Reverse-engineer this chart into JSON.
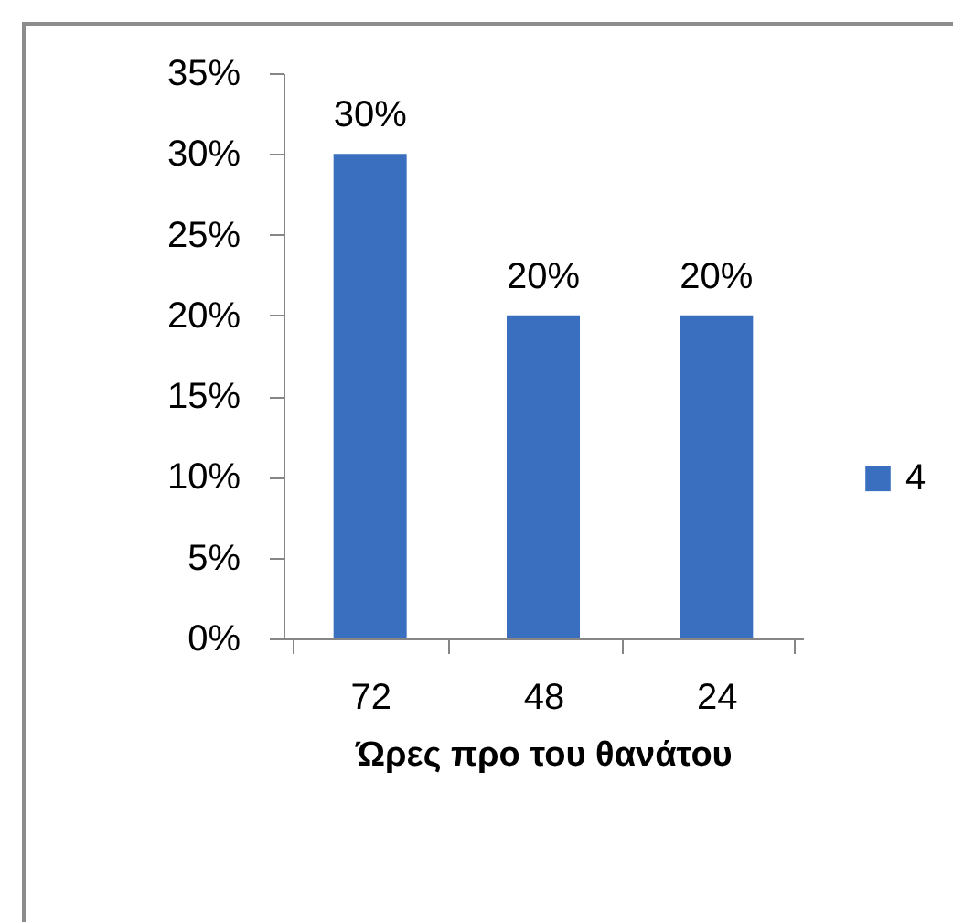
{
  "chart_data": {
    "type": "bar",
    "xlabel": "Ώρες προ του θανάτου",
    "categories": [
      "72",
      "48",
      "24"
    ],
    "series": [
      {
        "name": "4",
        "color": "#3a6fc0",
        "values": [
          30,
          20,
          20
        ],
        "value_labels": [
          "30%",
          "20%",
          "20%"
        ]
      }
    ],
    "ylim": [
      0,
      35
    ],
    "yticks": [
      {
        "value": 0,
        "label": "0%"
      },
      {
        "value": 5,
        "label": "5%"
      },
      {
        "value": 10,
        "label": "10%"
      },
      {
        "value": 15,
        "label": "15%"
      },
      {
        "value": 20,
        "label": "20%"
      },
      {
        "value": 25,
        "label": "25%"
      },
      {
        "value": 30,
        "label": "30%"
      },
      {
        "value": 35,
        "label": "35%"
      }
    ],
    "legend": "right"
  }
}
